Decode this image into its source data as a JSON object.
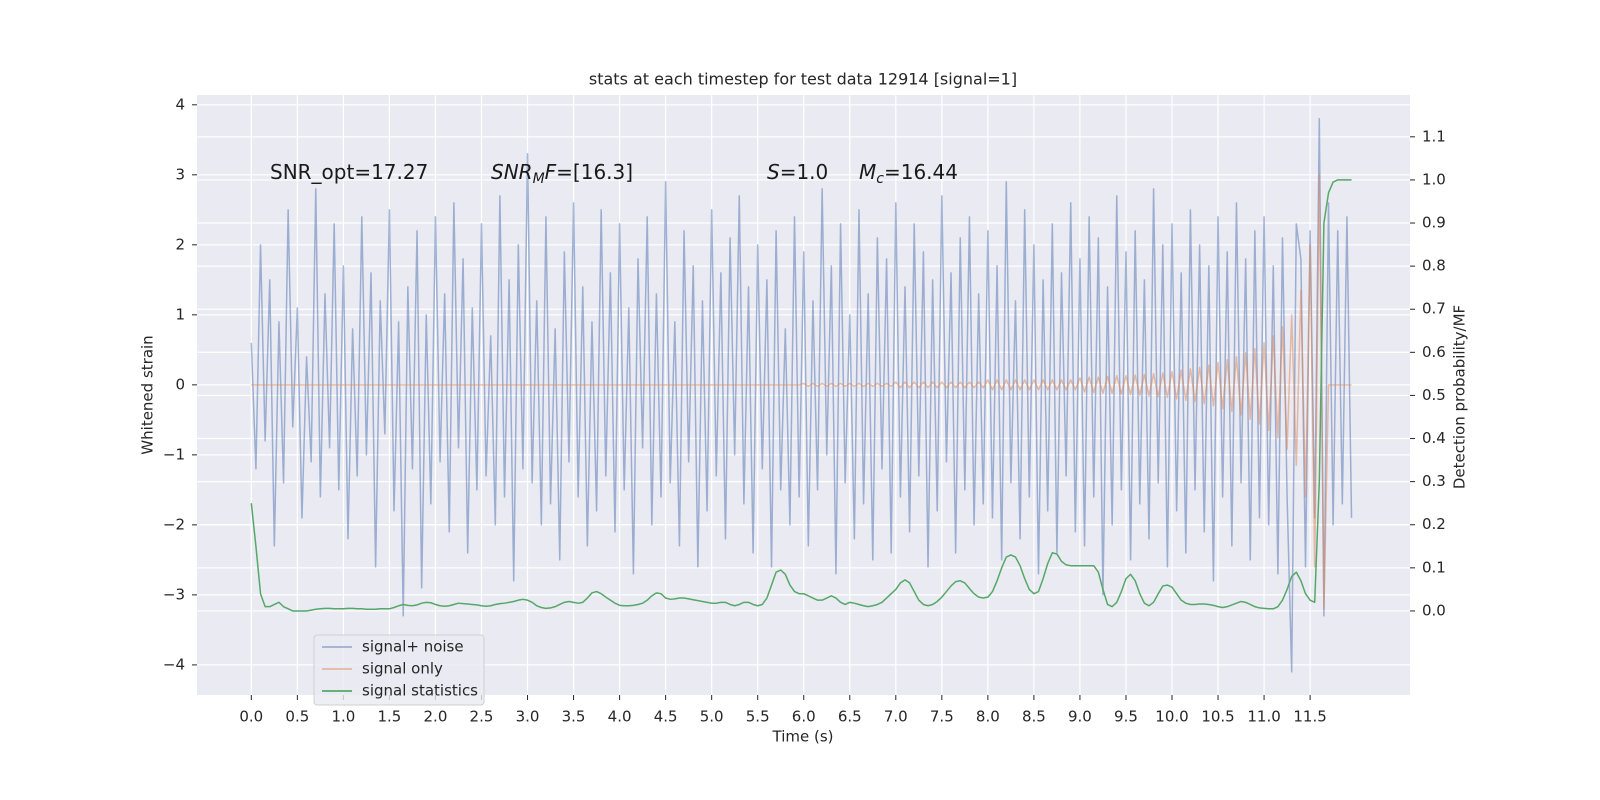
{
  "chart_data": {
    "type": "line",
    "title": "stats at each timestep for test data 12914 [signal=1]",
    "xlabel": "Time (s)",
    "ylabel": "Whitened strain",
    "y2label": "Detection probability/MF",
    "annotations": [
      [
        "SNR_opt=17.27"
      ],
      [
        "SNR",
        "M",
        "F",
        "=[16.3]"
      ],
      [
        "S",
        "=1.0"
      ],
      [
        "M",
        "c",
        "=16.44"
      ]
    ],
    "grid": true,
    "legend": "lower left",
    "xlim": [
      -0.59,
      12.585
    ],
    "ylim": [
      -4.43,
      4.14
    ],
    "y2lim": [
      -0.195,
      1.197
    ],
    "xticks": [
      {
        "value": 0,
        "label": "0.0"
      },
      0.5,
      {
        "value": 1,
        "label": "1.0"
      },
      1.5,
      {
        "value": 2,
        "label": "2.0"
      },
      2.5,
      {
        "value": 3,
        "label": "3.0"
      },
      3.5,
      {
        "value": 4,
        "label": "4.0"
      },
      4.5,
      {
        "value": 5,
        "label": "5.0"
      },
      5.5,
      {
        "value": 6,
        "label": "6.0"
      },
      6.5,
      {
        "value": 7,
        "label": "7.0"
      },
      7.5,
      {
        "value": 8,
        "label": "8.0"
      },
      8.5,
      {
        "value": 9,
        "label": "9.0"
      },
      9.5,
      {
        "value": 10,
        "label": "10.0"
      },
      10.5,
      {
        "value": 11,
        "label": "11.0"
      },
      11.5
    ],
    "yticks": [
      {
        "value": -4,
        "label": "−4"
      },
      {
        "value": -3,
        "label": "−3"
      },
      {
        "value": -2,
        "label": "−2"
      },
      {
        "value": -1,
        "label": "−1"
      },
      0,
      1,
      2,
      3,
      4
    ],
    "y2ticks": [
      {
        "value": 0,
        "label": "0.0"
      },
      0.1,
      0.2,
      0.3,
      0.4,
      0.5,
      0.6,
      0.7,
      0.8,
      0.9,
      {
        "value": 1,
        "label": "1.0"
      },
      1.1
    ],
    "x": [
      0,
      0.05,
      0.1,
      0.15,
      0.2,
      0.25,
      0.3,
      0.35,
      0.4,
      0.45,
      0.5,
      0.55,
      0.6,
      0.65,
      0.7,
      0.75,
      0.8,
      0.85,
      0.9,
      0.95,
      1,
      1.05,
      1.1,
      1.15,
      1.2,
      1.25,
      1.3,
      1.35,
      1.4,
      1.45,
      1.5,
      1.55,
      1.6,
      1.65,
      1.7,
      1.75,
      1.8,
      1.85,
      1.9,
      1.95,
      2,
      2.05,
      2.1,
      2.15,
      2.2,
      2.25,
      2.3,
      2.35,
      2.4,
      2.45,
      2.5,
      2.55,
      2.6,
      2.65,
      2.7,
      2.75,
      2.8,
      2.85,
      2.9,
      2.95,
      3,
      3.05,
      3.1,
      3.15,
      3.2,
      3.25,
      3.3,
      3.35,
      3.4,
      3.45,
      3.5,
      3.55,
      3.6,
      3.65,
      3.7,
      3.75,
      3.8,
      3.85,
      3.9,
      3.95,
      4,
      4.05,
      4.1,
      4.15,
      4.2,
      4.25,
      4.3,
      4.35,
      4.4,
      4.45,
      4.5,
      4.55,
      4.6,
      4.65,
      4.7,
      4.75,
      4.8,
      4.85,
      4.9,
      4.95,
      5,
      5.05,
      5.1,
      5.15,
      5.2,
      5.25,
      5.3,
      5.35,
      5.4,
      5.45,
      5.5,
      5.55,
      5.6,
      5.65,
      5.7,
      5.75,
      5.8,
      5.85,
      5.9,
      5.95,
      6,
      6.05,
      6.1,
      6.15,
      6.2,
      6.25,
      6.3,
      6.35,
      6.4,
      6.45,
      6.5,
      6.55,
      6.6,
      6.65,
      6.7,
      6.75,
      6.8,
      6.85,
      6.9,
      6.95,
      7,
      7.05,
      7.1,
      7.15,
      7.2,
      7.25,
      7.3,
      7.35,
      7.4,
      7.45,
      7.5,
      7.55,
      7.6,
      7.65,
      7.7,
      7.75,
      7.8,
      7.85,
      7.9,
      7.95,
      8,
      8.05,
      8.1,
      8.15,
      8.2,
      8.25,
      8.3,
      8.35,
      8.4,
      8.45,
      8.5,
      8.55,
      8.6,
      8.65,
      8.7,
      8.75,
      8.8,
      8.85,
      8.9,
      8.95,
      9,
      9.05,
      9.1,
      9.15,
      9.2,
      9.25,
      9.3,
      9.35,
      9.4,
      9.45,
      9.5,
      9.55,
      9.6,
      9.65,
      9.7,
      9.75,
      9.8,
      9.85,
      9.9,
      9.95,
      10,
      10.05,
      10.1,
      10.15,
      10.2,
      10.25,
      10.3,
      10.35,
      10.4,
      10.45,
      10.5,
      10.55,
      10.6,
      10.65,
      10.7,
      10.75,
      10.8,
      10.85,
      10.9,
      10.95,
      11,
      11.05,
      11.1,
      11.15,
      11.2,
      11.25,
      11.3,
      11.35,
      11.4,
      11.45,
      11.5,
      11.55,
      11.6,
      11.65,
      11.7,
      11.75,
      11.8,
      11.85,
      11.9,
      11.95
    ],
    "series": [
      {
        "name": "signal+ noise",
        "color": "#4c72b0",
        "opacity": 0.5,
        "values": [
          0.6,
          -1.2,
          2.0,
          -0.8,
          1.5,
          -2.3,
          0.9,
          -1.4,
          2.5,
          -0.6,
          1.1,
          -1.9,
          0.4,
          -1.1,
          2.8,
          -1.6,
          1.3,
          -0.9,
          2.3,
          -1.5,
          1.7,
          -2.2,
          0.8,
          -1.3,
          2.4,
          -1.0,
          1.6,
          -2.6,
          1.2,
          -0.7,
          2.5,
          -1.8,
          0.9,
          -3.3,
          1.4,
          -1.2,
          2.2,
          -2.9,
          1.0,
          -1.7,
          2.4,
          -1.1,
          1.3,
          -2.1,
          2.6,
          -0.9,
          1.8,
          -2.4,
          1.1,
          -1.5,
          2.3,
          -1.3,
          0.7,
          -2.0,
          2.7,
          -1.6,
          1.5,
          -2.8,
          2.0,
          -1.2,
          3.3,
          -1.4,
          1.2,
          -2.0,
          2.4,
          -1.7,
          0.8,
          -2.5,
          1.9,
          -1.1,
          2.6,
          -1.6,
          1.4,
          -2.3,
          0.9,
          -1.8,
          2.5,
          -1.3,
          1.6,
          -2.1,
          2.3,
          -1.5,
          1.1,
          -2.7,
          1.8,
          -0.9,
          2.4,
          -2.0,
          1.3,
          -1.6,
          2.9,
          -1.4,
          0.9,
          -2.3,
          2.2,
          -1.1,
          1.7,
          -2.6,
          1.2,
          -1.8,
          2.5,
          -1.3,
          1.6,
          -2.2,
          2.1,
          -1.0,
          2.7,
          -1.7,
          1.4,
          -2.4,
          2.0,
          -1.2,
          1.5,
          -2.6,
          2.2,
          -1.5,
          0.8,
          -2.0,
          2.4,
          -1.6,
          1.9,
          -2.3,
          1.2,
          -1.5,
          2.8,
          -1.0,
          1.7,
          -2.7,
          2.3,
          -1.4,
          1.0,
          -2.2,
          2.5,
          -1.7,
          1.3,
          -2.5,
          2.1,
          -1.2,
          1.8,
          -2.4,
          2.6,
          -1.6,
          1.4,
          -2.1,
          2.3,
          -1.3,
          1.9,
          -2.6,
          1.5,
          -1.8,
          2.7,
          -1.1,
          1.6,
          -2.4,
          2.1,
          -1.5,
          2.4,
          -2.0,
          1.3,
          -1.7,
          2.2,
          -1.9,
          1.7,
          -2.5,
          2.9,
          -1.4,
          1.2,
          -2.2,
          2.5,
          -1.6,
          2.0,
          -2.7,
          1.5,
          -1.8,
          2.3,
          -2.4,
          1.6,
          -1.3,
          2.6,
          -2.1,
          1.8,
          -2.3,
          2.4,
          -1.6,
          2.1,
          -3.0,
          1.4,
          -2.0,
          2.7,
          -1.5,
          1.9,
          -2.5,
          2.2,
          -1.7,
          1.5,
          -2.2,
          2.8,
          -1.4,
          2.0,
          -2.6,
          2.3,
          -1.8,
          1.6,
          -2.4,
          2.5,
          -1.5,
          2.0,
          -2.1,
          1.7,
          -2.8,
          2.4,
          -1.6,
          1.9,
          -2.3,
          2.6,
          -1.4,
          1.8,
          -2.5,
          2.2,
          -1.9,
          2.4,
          -2.0,
          1.7,
          -2.7,
          2.1,
          -1.6,
          -4.1,
          2.3,
          1.8,
          -2.6,
          2.2,
          -1.9,
          3.8,
          -3.3,
          2.6,
          -2.0,
          2.2,
          -1.7,
          2.4,
          -1.9
        ]
      },
      {
        "name": "signal only",
        "color": "#dd8452",
        "opacity": 0.5,
        "values": [
          0,
          0,
          0,
          0,
          0,
          0,
          0,
          0,
          0,
          0,
          0,
          0,
          0,
          0,
          0,
          0,
          0,
          0,
          0,
          0,
          0,
          0,
          0,
          0,
          0,
          0,
          0,
          0,
          0,
          0,
          0,
          0,
          0,
          0,
          0,
          0,
          0,
          0,
          0,
          0,
          0,
          0,
          0,
          0,
          0,
          0,
          0,
          0,
          0,
          0,
          0,
          0,
          0,
          0,
          0,
          0,
          0,
          0,
          0,
          0,
          0,
          0,
          0,
          0,
          0,
          0,
          0,
          0,
          0,
          0,
          0,
          0,
          0,
          0,
          0,
          0,
          0,
          0,
          0,
          0,
          0,
          0,
          0,
          0,
          0,
          0,
          0,
          0,
          0,
          0,
          0,
          0,
          0,
          0,
          0,
          0,
          0,
          0,
          0,
          0,
          0,
          0,
          0,
          0,
          0,
          0,
          0,
          0,
          0,
          0,
          0,
          0,
          0,
          0,
          0,
          0,
          0,
          0,
          0,
          0,
          0.02,
          -0.02,
          0.02,
          -0.02,
          0.02,
          -0.02,
          0.02,
          -0.02,
          0.02,
          -0.02,
          0.02,
          -0.02,
          0.02,
          -0.02,
          0.02,
          -0.02,
          0.02,
          -0.02,
          0.02,
          -0.02,
          0.04,
          -0.04,
          0.04,
          -0.04,
          0.04,
          -0.04,
          0.04,
          -0.04,
          0.04,
          -0.04,
          0.04,
          -0.04,
          0.04,
          -0.04,
          0.04,
          -0.04,
          0.04,
          -0.04,
          0.04,
          -0.04,
          0.07,
          -0.07,
          0.07,
          -0.07,
          0.07,
          -0.07,
          0.07,
          -0.07,
          0.07,
          -0.07,
          0.07,
          -0.07,
          0.07,
          -0.07,
          0.07,
          -0.07,
          0.07,
          -0.07,
          0.07,
          -0.07,
          0.1,
          -0.1,
          0.11,
          -0.11,
          0.11,
          -0.12,
          0.12,
          -0.12,
          0.13,
          -0.13,
          0.13,
          -0.14,
          0.14,
          -0.15,
          0.15,
          -0.16,
          0.16,
          -0.17,
          0.17,
          -0.18,
          0.19,
          -0.2,
          0.21,
          -0.22,
          0.23,
          -0.24,
          0.25,
          -0.27,
          0.28,
          -0.3,
          0.32,
          -0.34,
          0.36,
          -0.38,
          0.4,
          -0.43,
          0.46,
          -0.49,
          0.52,
          -0.56,
          0.6,
          -0.65,
          0.7,
          -0.76,
          0.83,
          -0.92,
          1.0,
          -1.15,
          1.35,
          -1.6,
          2.0,
          -2.6,
          3.0,
          -3.2,
          0,
          0,
          0,
          0,
          0,
          0
        ]
      },
      {
        "name": "signal statistics",
        "color": "#55a868",
        "opacity": 1,
        "axis": "y2",
        "values": [
          0.25,
          0.15,
          0.04,
          0.01,
          0.01,
          0.015,
          0.02,
          0.01,
          0.005,
          0.0,
          0.0,
          0.0,
          0.0,
          0.002,
          0.004,
          0.005,
          0.006,
          0.006,
          0.005,
          0.005,
          0.005,
          0.006,
          0.006,
          0.005,
          0.005,
          0.004,
          0.004,
          0.004,
          0.005,
          0.005,
          0.005,
          0.008,
          0.012,
          0.015,
          0.013,
          0.012,
          0.014,
          0.018,
          0.02,
          0.019,
          0.015,
          0.012,
          0.011,
          0.012,
          0.015,
          0.018,
          0.017,
          0.016,
          0.015,
          0.014,
          0.012,
          0.011,
          0.012,
          0.015,
          0.017,
          0.018,
          0.02,
          0.022,
          0.025,
          0.027,
          0.025,
          0.02,
          0.012,
          0.008,
          0.006,
          0.007,
          0.01,
          0.015,
          0.02,
          0.022,
          0.02,
          0.018,
          0.02,
          0.03,
          0.042,
          0.045,
          0.04,
          0.032,
          0.025,
          0.018,
          0.013,
          0.012,
          0.012,
          0.013,
          0.015,
          0.018,
          0.025,
          0.035,
          0.042,
          0.04,
          0.03,
          0.027,
          0.028,
          0.03,
          0.03,
          0.028,
          0.026,
          0.024,
          0.022,
          0.02,
          0.018,
          0.018,
          0.02,
          0.02,
          0.015,
          0.012,
          0.015,
          0.02,
          0.02,
          0.015,
          0.012,
          0.015,
          0.03,
          0.06,
          0.09,
          0.095,
          0.085,
          0.06,
          0.045,
          0.04,
          0.04,
          0.035,
          0.03,
          0.025,
          0.025,
          0.03,
          0.035,
          0.03,
          0.02,
          0.015,
          0.02,
          0.018,
          0.015,
          0.012,
          0.01,
          0.012,
          0.015,
          0.02,
          0.03,
          0.04,
          0.05,
          0.065,
          0.072,
          0.065,
          0.045,
          0.025,
          0.015,
          0.012,
          0.015,
          0.022,
          0.032,
          0.045,
          0.058,
          0.068,
          0.07,
          0.065,
          0.052,
          0.04,
          0.032,
          0.03,
          0.032,
          0.045,
          0.07,
          0.1,
          0.125,
          0.13,
          0.125,
          0.105,
          0.075,
          0.05,
          0.04,
          0.045,
          0.075,
          0.11,
          0.135,
          0.132,
          0.115,
          0.107,
          0.105,
          0.105,
          0.105,
          0.105,
          0.105,
          0.105,
          0.09,
          0.05,
          0.015,
          0.01,
          0.02,
          0.045,
          0.075,
          0.085,
          0.07,
          0.04,
          0.018,
          0.012,
          0.02,
          0.04,
          0.058,
          0.06,
          0.055,
          0.04,
          0.025,
          0.018,
          0.015,
          0.015,
          0.016,
          0.016,
          0.015,
          0.013,
          0.01,
          0.008,
          0.01,
          0.014,
          0.018,
          0.022,
          0.02,
          0.015,
          0.01,
          0.007,
          0.006,
          0.005,
          0.005,
          0.01,
          0.025,
          0.05,
          0.08,
          0.09,
          0.07,
          0.04,
          0.025,
          0.02,
          0.3,
          0.9,
          0.97,
          0.995,
          1.0,
          1.0,
          1.0,
          1.0
        ]
      }
    ]
  }
}
